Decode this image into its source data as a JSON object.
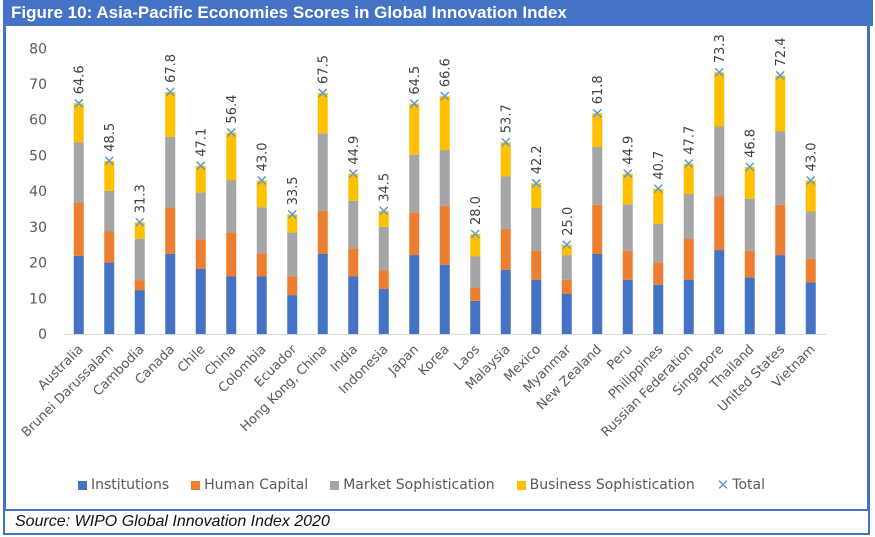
{
  "figure": {
    "title": "Figure 10: Asia-Pacific Economies Scores in Global Innovation Index",
    "source": "Source: WIPO Global Innovation Index 2020"
  },
  "colors": {
    "institutions": "#4472C4",
    "human_capital": "#ED7D31",
    "market_sophistication": "#A5A5A5",
    "business_sophistication": "#FFC000",
    "total": "#5B9BD5"
  },
  "legend": [
    {
      "label": "Institutions",
      "color": "#4472C4",
      "marker": "square"
    },
    {
      "label": "Human Capital",
      "color": "#ED7D31",
      "marker": "square"
    },
    {
      "label": "Market Sophistication",
      "color": "#A5A5A5",
      "marker": "square"
    },
    {
      "label": "Business Sophistication",
      "color": "#FFC000",
      "marker": "square"
    },
    {
      "label": "Total",
      "color": "#5B9BD5",
      "marker": "x"
    }
  ],
  "chart_data": {
    "type": "bar",
    "stacked": true,
    "title": "Figure 10: Asia-Pacific Economies Scores in Global Innovation Index",
    "xlabel": "",
    "ylabel": "",
    "ylim": [
      0,
      80
    ],
    "yticks": [
      0,
      10,
      20,
      30,
      40,
      50,
      60,
      70,
      80
    ],
    "grid": false,
    "legend_position": "bottom",
    "categories": [
      "Australia",
      "Brunei Darussalam",
      "Cambodia",
      "Canada",
      "Chile",
      "China",
      "Colombia",
      "Ecuador",
      "Hong Kong, China",
      "India",
      "Indonesia",
      "Japan",
      "Korea",
      "Laos",
      "Malaysia",
      "Mexico",
      "Myanmar",
      "New Zealand",
      "Peru",
      "Philippines",
      "Russian Federation",
      "Singapore",
      "Thailand",
      "United States",
      "Vietnam"
    ],
    "series": [
      {
        "name": "Institutions",
        "values": [
          21.9,
          20.0,
          12.3,
          22.4,
          18.3,
          16.1,
          16.1,
          10.9,
          22.4,
          16.1,
          12.6,
          22.1,
          19.4,
          9.3,
          18.0,
          15.2,
          11.2,
          22.4,
          15.2,
          13.8,
          15.2,
          23.5,
          15.8,
          22.1,
          14.4
        ]
      },
      {
        "name": "Human Capital",
        "values": [
          14.9,
          8.7,
          2.8,
          13.0,
          8.2,
          12.3,
          6.5,
          5.3,
          12.1,
          7.9,
          5.2,
          11.9,
          16.5,
          3.7,
          11.5,
          8.1,
          4.0,
          13.8,
          8.1,
          6.2,
          11.4,
          15.0,
          7.5,
          14.1,
          6.7
        ]
      },
      {
        "name": "Market Sophistication",
        "values": [
          16.9,
          11.4,
          11.6,
          19.8,
          13.1,
          14.7,
          12.9,
          12.2,
          21.7,
          13.3,
          12.2,
          16.2,
          15.6,
          8.7,
          14.6,
          12.0,
          6.9,
          16.2,
          13.0,
          10.9,
          12.6,
          19.6,
          14.6,
          20.5,
          13.2
        ]
      },
      {
        "name": "Business Sophistication",
        "values": [
          10.9,
          8.4,
          4.6,
          12.6,
          7.5,
          13.3,
          7.5,
          5.1,
          11.3,
          7.6,
          4.5,
          14.3,
          15.1,
          6.3,
          9.6,
          6.9,
          2.9,
          9.4,
          8.6,
          9.8,
          8.5,
          15.2,
          8.9,
          15.7,
          8.7
        ]
      }
    ],
    "total": {
      "name": "Total",
      "marker": "x",
      "values": [
        64.6,
        48.5,
        31.3,
        67.8,
        47.1,
        56.4,
        43.0,
        33.5,
        67.5,
        44.9,
        34.5,
        64.5,
        66.6,
        28.0,
        53.7,
        42.2,
        25.0,
        61.8,
        44.9,
        40.7,
        47.7,
        73.3,
        46.8,
        72.4,
        43.0
      ],
      "labels": [
        "64.6",
        "48.5",
        "31.3",
        "67.8",
        "47.1",
        "56.4",
        "43.0",
        "33.5",
        "67.5",
        "44.9",
        "34.5",
        "64.5",
        "66.6",
        "28.0",
        "53.7",
        "42.2",
        "25.0",
        "61.8",
        "44.9",
        "40.7",
        "47.7",
        "73.3",
        "46.8",
        "72.4",
        "43.0"
      ]
    }
  }
}
